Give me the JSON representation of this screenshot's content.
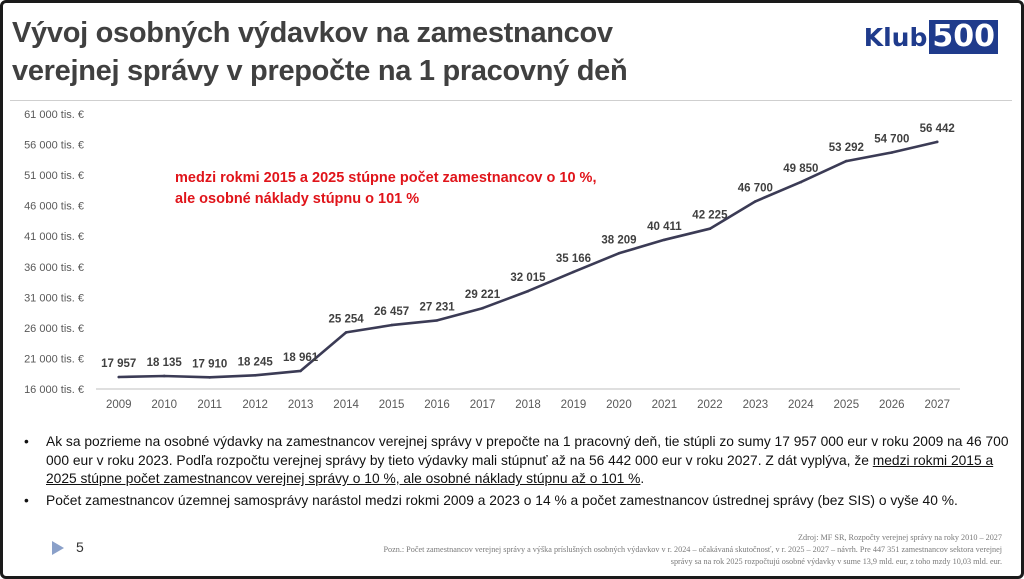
{
  "header": {
    "title_line1": "Vývoj osobných výdavkov na zamestnancov",
    "title_line2": "verejnej správy v prepočte na 1 pracovný deň",
    "logo_word": "Klub",
    "logo_number": "500"
  },
  "annotation": {
    "line1": "medzi rokmi 2015 a 2025 stúpne počet zamestnancov o 10 %,",
    "line2": "ale osobné náklady stúpnu o 101 %"
  },
  "chart_data": {
    "type": "line",
    "title": "",
    "xlabel": "",
    "ylabel": "",
    "x": [
      "2009",
      "2010",
      "2011",
      "2012",
      "2013",
      "2014",
      "2015",
      "2016",
      "2017",
      "2018",
      "2019",
      "2020",
      "2021",
      "2022",
      "2023",
      "2024",
      "2025",
      "2026",
      "2027"
    ],
    "values": [
      17957,
      18135,
      17910,
      18245,
      18961,
      25254,
      26457,
      27231,
      29221,
      32015,
      35166,
      38209,
      40411,
      42225,
      46700,
      49850,
      53292,
      54700,
      56442
    ],
    "data_labels": [
      "17 957",
      "18 135",
      "17 910",
      "18 245",
      "18 961",
      "25 254",
      "26 457",
      "27 231",
      "29 221",
      "32 015",
      "35 166",
      "38 209",
      "40 411",
      "42 225",
      "46 700",
      "49 850",
      "53 292",
      "54 700",
      "56 442"
    ],
    "ylim": [
      16000,
      61000
    ],
    "yticks": [
      16000,
      21000,
      26000,
      31000,
      36000,
      41000,
      46000,
      51000,
      56000,
      61000
    ],
    "ytick_labels": [
      "16 000 tis. €",
      "21 000 tis. €",
      "26 000 tis. €",
      "31 000 tis. €",
      "36 000 tis. €",
      "41 000 tis. €",
      "46 000 tis. €",
      "51 000 tis. €",
      "56 000 tis. €",
      "61 000 tis. €"
    ],
    "grid": false,
    "line_color": "#3b3b55"
  },
  "bullets": {
    "b1_part1": "Ak sa pozrieme na osobné výdavky na zamestnancov verejnej správy v prepočte na 1 pracovný deň, tie stúpli zo sumy 17 957 000 eur v roku 2009 na 46 700 000 eur v roku 2023. Podľa rozpočtu verejnej správy by tieto výdavky mali stúpnuť až na 56 442 000 eur v roku 2027. Z dát vyplýva, že",
    "b1_underlined": "medzi rokmi 2015 a 2025 stúpne počet zamestnancov verejnej správy o 10 %, ale osobné náklady stúpnu až o 101 %",
    "b1_end": ".",
    "b2": "Počet zamestnancov územnej samosprávy narástol medzi rokmi 2009 a 2023 o 14 % a počet zamestnancov ústrednej správy (bez SIS) o vyše 40 %.",
    "bullet_char": "•"
  },
  "footer": {
    "page_number": "5",
    "source": "Zdroj: MF SR, Rozpočty verejnej správy na roky 2010 – 2027",
    "note_line1": "Pozn.: Počet zamestnancov verejnej správy a výška príslušných osobných výdavkov v r. 2024 – očakávaná skutočnosť, v r. 2025 – 2027 – návrh. Pre 447 351 zamestnancov sektora verejnej",
    "note_line2": "správy sa na rok 2025 rozpočtujú osobné výdavky v sume 13,9 mld. eur, z toho mzdy 10,03 mld. eur."
  }
}
